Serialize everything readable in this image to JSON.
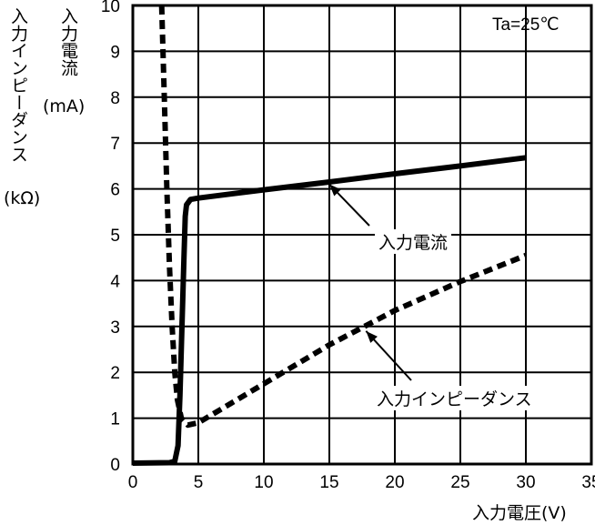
{
  "chart_data": {
    "type": "line",
    "condition": "Ta=25℃",
    "xlabel": "入力電圧(V)",
    "ylabel_current": "入力電流",
    "ylabel_current_unit": "(mA)",
    "ylabel_impedance": "入力インピーダンス",
    "ylabel_impedance_unit": "(kΩ)",
    "xlim": [
      0,
      35
    ],
    "ylim": [
      0,
      10
    ],
    "xticks": [
      "0",
      "5",
      "10",
      "15",
      "20",
      "25",
      "30",
      "35"
    ],
    "yticks": [
      "0",
      "1",
      "2",
      "3",
      "4",
      "5",
      "6",
      "7",
      "8",
      "9",
      "10"
    ],
    "grid": true,
    "series": [
      {
        "name": "入力電流",
        "style": "solid",
        "points": [
          [
            0,
            0.02
          ],
          [
            2.8,
            0.03
          ],
          [
            3.2,
            0.06
          ],
          [
            3.45,
            0.4
          ],
          [
            3.6,
            1.5
          ],
          [
            3.75,
            3.0
          ],
          [
            3.9,
            4.5
          ],
          [
            4.0,
            5.4
          ],
          [
            4.1,
            5.65
          ],
          [
            4.4,
            5.77
          ],
          [
            5,
            5.8
          ],
          [
            10,
            5.98
          ],
          [
            15,
            6.15
          ],
          [
            20,
            6.33
          ],
          [
            25,
            6.5
          ],
          [
            30,
            6.68
          ]
        ]
      },
      {
        "name": "入力インピーダンス",
        "style": "dashed",
        "points": [
          [
            2.2,
            10
          ],
          [
            2.4,
            8.0
          ],
          [
            2.6,
            6.0
          ],
          [
            2.8,
            4.3
          ],
          [
            3.0,
            3.0
          ],
          [
            3.2,
            2.0
          ],
          [
            3.4,
            1.4
          ],
          [
            3.7,
            1.0
          ],
          [
            4.2,
            0.85
          ],
          [
            5,
            0.9
          ],
          [
            10,
            1.75
          ],
          [
            15,
            2.6
          ],
          [
            20,
            3.35
          ],
          [
            25,
            3.98
          ],
          [
            30,
            4.55
          ]
        ]
      }
    ],
    "annotations": [
      {
        "text": "入力電流",
        "target_series": 0,
        "arrow_to": [
          15,
          6.1
        ]
      },
      {
        "text": "入力インピーダンス",
        "target_series": 1,
        "arrow_to": [
          17.8,
          2.9
        ]
      }
    ],
    "colors": {
      "line": "#000000",
      "grid": "#000000",
      "background": "#ffffff"
    }
  }
}
